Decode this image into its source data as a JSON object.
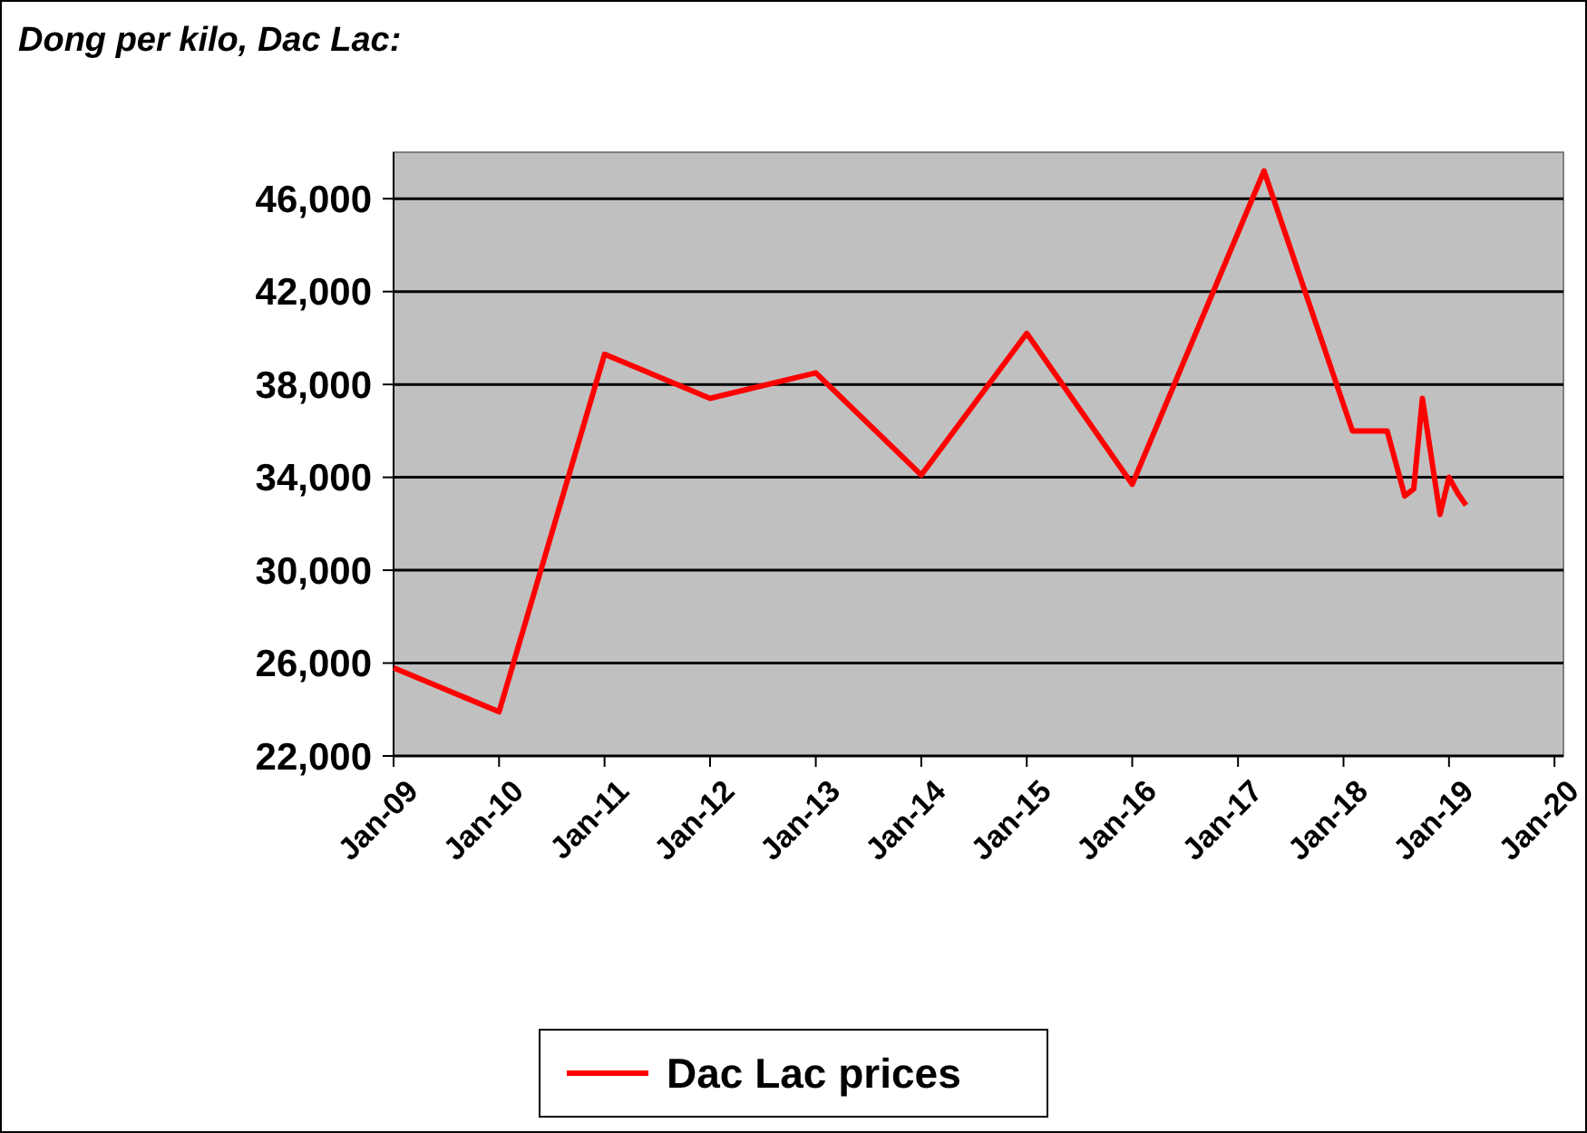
{
  "chart_data": {
    "type": "line",
    "title": "Dong per kilo, Dac Lac:",
    "x": [
      "2009-01",
      "2010-01",
      "2011-01",
      "2012-01",
      "2013-01",
      "2014-01",
      "2015-01",
      "2016-01",
      "2017-04",
      "2018-02",
      "2018-06",
      "2018-08",
      "2018-09",
      "2018-10",
      "2018-12",
      "2019-01",
      "2019-02",
      "2019-03"
    ],
    "series": [
      {
        "name": "Dac Lac prices",
        "color": "#ff0000",
        "values": [
          25800,
          23900,
          39300,
          37400,
          38500,
          34100,
          40200,
          33700,
          47200,
          36000,
          36000,
          33200,
          33500,
          37400,
          32400,
          34000,
          33300,
          32800
        ]
      }
    ],
    "xlim": [
      "2009-01",
      "2020-02"
    ],
    "xticks": [
      {
        "value": "2009-01",
        "label": "Jan-09"
      },
      {
        "value": "2010-01",
        "label": "Jan-10"
      },
      {
        "value": "2011-01",
        "label": "Jan-11"
      },
      {
        "value": "2012-01",
        "label": "Jan-12"
      },
      {
        "value": "2013-01",
        "label": "Jan-13"
      },
      {
        "value": "2014-01",
        "label": "Jan-14"
      },
      {
        "value": "2015-01",
        "label": "Jan-15"
      },
      {
        "value": "2016-01",
        "label": "Jan-16"
      },
      {
        "value": "2017-01",
        "label": "Jan-17"
      },
      {
        "value": "2018-01",
        "label": "Jan-18"
      },
      {
        "value": "2019-01",
        "label": "Jan-19"
      },
      {
        "value": "2020-01",
        "label": "Jan-20"
      }
    ],
    "ylim": [
      22000,
      48000
    ],
    "yticks": [
      {
        "value": 22000,
        "label": "22,000"
      },
      {
        "value": 26000,
        "label": "26,000"
      },
      {
        "value": 30000,
        "label": "30,000"
      },
      {
        "value": 34000,
        "label": "34,000"
      },
      {
        "value": 38000,
        "label": "38,000"
      },
      {
        "value": 42000,
        "label": "42,000"
      },
      {
        "value": 46000,
        "label": "46,000"
      }
    ],
    "grid": "y",
    "legend": "bottom"
  }
}
